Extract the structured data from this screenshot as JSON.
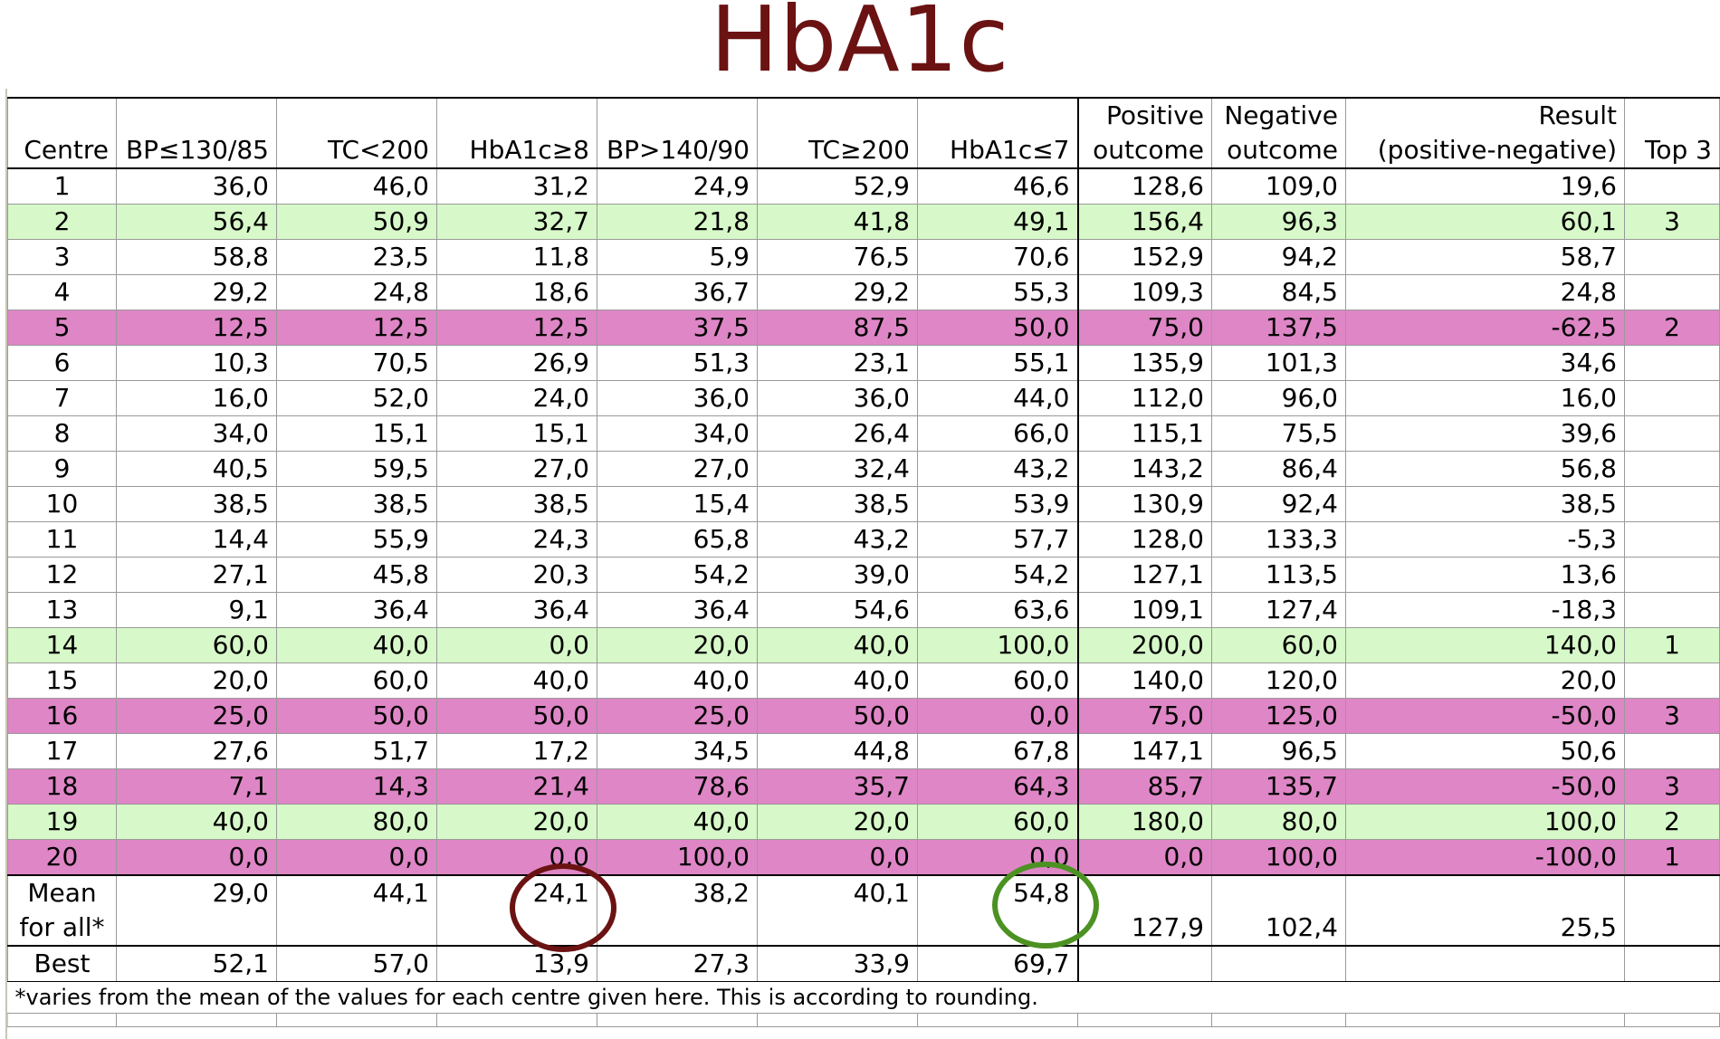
{
  "title": "HbA1c",
  "colors": {
    "title": "#6b1212",
    "highlight_good": "#d7f8c8",
    "highlight_bad": "#de86c6",
    "circle_mean_bad": "#6b1212",
    "circle_mean_good": "#4c9223"
  },
  "table": {
    "headers": {
      "centre": "Centre",
      "bp_low": "BP≤130/85",
      "tc_low": "TC<200",
      "hba_high": "HbA1c≥8",
      "bp_high": "BP>140/90",
      "tc_high": "TC≥200",
      "hba_low": "HbA1c≤7",
      "positive_1": "Positive",
      "positive_2": "outcome",
      "negative_1": "Negative",
      "negative_2": "outcome",
      "result_1": "Result",
      "result_2": "(positive-negative)",
      "top3": "Top 3"
    },
    "rows": [
      {
        "centre": "1",
        "v": [
          "36,0",
          "46,0",
          "31,2",
          "24,9",
          "52,9",
          "46,6",
          "128,6",
          "109,0",
          "19,6"
        ],
        "top3": "",
        "highlight": ""
      },
      {
        "centre": "2",
        "v": [
          "56,4",
          "50,9",
          "32,7",
          "21,8",
          "41,8",
          "49,1",
          "156,4",
          "96,3",
          "60,1"
        ],
        "top3": "3",
        "highlight": "green"
      },
      {
        "centre": "3",
        "v": [
          "58,8",
          "23,5",
          "11,8",
          "5,9",
          "76,5",
          "70,6",
          "152,9",
          "94,2",
          "58,7"
        ],
        "top3": "",
        "highlight": ""
      },
      {
        "centre": "4",
        "v": [
          "29,2",
          "24,8",
          "18,6",
          "36,7",
          "29,2",
          "55,3",
          "109,3",
          "84,5",
          "24,8"
        ],
        "top3": "",
        "highlight": ""
      },
      {
        "centre": "5",
        "v": [
          "12,5",
          "12,5",
          "12,5",
          "37,5",
          "87,5",
          "50,0",
          "75,0",
          "137,5",
          "-62,5"
        ],
        "top3": "2",
        "highlight": "pink"
      },
      {
        "centre": "6",
        "v": [
          "10,3",
          "70,5",
          "26,9",
          "51,3",
          "23,1",
          "55,1",
          "135,9",
          "101,3",
          "34,6"
        ],
        "top3": "",
        "highlight": ""
      },
      {
        "centre": "7",
        "v": [
          "16,0",
          "52,0",
          "24,0",
          "36,0",
          "36,0",
          "44,0",
          "112,0",
          "96,0",
          "16,0"
        ],
        "top3": "",
        "highlight": ""
      },
      {
        "centre": "8",
        "v": [
          "34,0",
          "15,1",
          "15,1",
          "34,0",
          "26,4",
          "66,0",
          "115,1",
          "75,5",
          "39,6"
        ],
        "top3": "",
        "highlight": ""
      },
      {
        "centre": "9",
        "v": [
          "40,5",
          "59,5",
          "27,0",
          "27,0",
          "32,4",
          "43,2",
          "143,2",
          "86,4",
          "56,8"
        ],
        "top3": "",
        "highlight": ""
      },
      {
        "centre": "10",
        "v": [
          "38,5",
          "38,5",
          "38,5",
          "15,4",
          "38,5",
          "53,9",
          "130,9",
          "92,4",
          "38,5"
        ],
        "top3": "",
        "highlight": ""
      },
      {
        "centre": "11",
        "v": [
          "14,4",
          "55,9",
          "24,3",
          "65,8",
          "43,2",
          "57,7",
          "128,0",
          "133,3",
          "-5,3"
        ],
        "top3": "",
        "highlight": ""
      },
      {
        "centre": "12",
        "v": [
          "27,1",
          "45,8",
          "20,3",
          "54,2",
          "39,0",
          "54,2",
          "127,1",
          "113,5",
          "13,6"
        ],
        "top3": "",
        "highlight": ""
      },
      {
        "centre": "13",
        "v": [
          "9,1",
          "36,4",
          "36,4",
          "36,4",
          "54,6",
          "63,6",
          "109,1",
          "127,4",
          "-18,3"
        ],
        "top3": "",
        "highlight": ""
      },
      {
        "centre": "14",
        "v": [
          "60,0",
          "40,0",
          "0,0",
          "20,0",
          "40,0",
          "100,0",
          "200,0",
          "60,0",
          "140,0"
        ],
        "top3": "1",
        "highlight": "green"
      },
      {
        "centre": "15",
        "v": [
          "20,0",
          "60,0",
          "40,0",
          "40,0",
          "40,0",
          "60,0",
          "140,0",
          "120,0",
          "20,0"
        ],
        "top3": "",
        "highlight": ""
      },
      {
        "centre": "16",
        "v": [
          "25,0",
          "50,0",
          "50,0",
          "25,0",
          "50,0",
          "0,0",
          "75,0",
          "125,0",
          "-50,0"
        ],
        "top3": "3",
        "highlight": "pink"
      },
      {
        "centre": "17",
        "v": [
          "27,6",
          "51,7",
          "17,2",
          "34,5",
          "44,8",
          "67,8",
          "147,1",
          "96,5",
          "50,6"
        ],
        "top3": "",
        "highlight": ""
      },
      {
        "centre": "18",
        "v": [
          "7,1",
          "14,3",
          "21,4",
          "78,6",
          "35,7",
          "64,3",
          "85,7",
          "135,7",
          "-50,0"
        ],
        "top3": "3",
        "highlight": "pink"
      },
      {
        "centre": "19",
        "v": [
          "40,0",
          "80,0",
          "20,0",
          "40,0",
          "20,0",
          "60,0",
          "180,0",
          "80,0",
          "100,0"
        ],
        "top3": "2",
        "highlight": "green"
      },
      {
        "centre": "20",
        "v": [
          "0,0",
          "0,0",
          "0,0",
          "100,0",
          "0,0",
          "0,0",
          "0,0",
          "100,0",
          "-100,0"
        ],
        "top3": "1",
        "highlight": "pink"
      }
    ],
    "mean": {
      "label_1": "Mean",
      "label_2": "for all*",
      "v": [
        "29,0",
        "44,1",
        "24,1",
        "38,2",
        "40,1",
        "54,8",
        "127,9",
        "102,4",
        "25,5"
      ]
    },
    "best": {
      "label": "Best",
      "v": [
        "52,1",
        "57,0",
        "13,9",
        "27,3",
        "33,9",
        "69,7"
      ]
    },
    "footnote": "*varies from the mean of the values for each centre given here. This is according to rounding."
  }
}
